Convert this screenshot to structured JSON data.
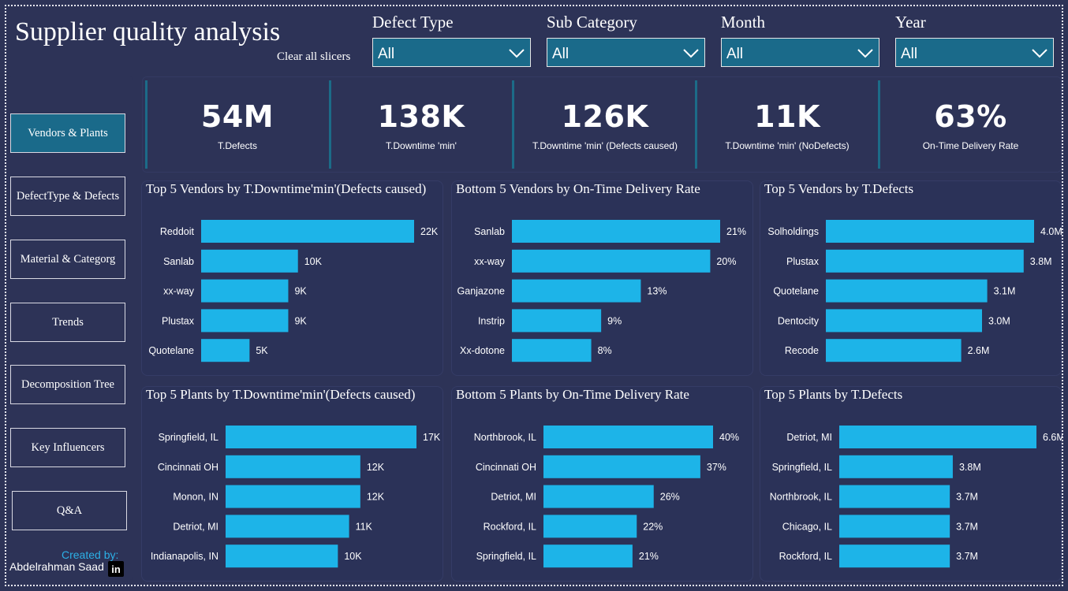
{
  "header": {
    "title": "Supplier quality analysis",
    "clear_label": "Clear all slicers"
  },
  "slicers": [
    {
      "label": "Defect Type",
      "value": "All"
    },
    {
      "label": "Sub Category",
      "value": "All"
    },
    {
      "label": "Month",
      "value": "All"
    },
    {
      "label": "Year",
      "value": "All"
    }
  ],
  "nav": {
    "items": [
      {
        "label": "Vendors & Plants",
        "active": true
      },
      {
        "label": "DefectType & Defects",
        "active": false
      },
      {
        "label": "Material & Categorg",
        "active": false
      },
      {
        "label": "Trends",
        "active": false
      },
      {
        "label": "Decomposition Tree",
        "active": false
      },
      {
        "label": "Key Influencers",
        "active": false
      },
      {
        "label": "Q&A",
        "active": false
      }
    ],
    "created_by": "Created by:",
    "author": "Abdelrahman Saad",
    "linkedin_icon": "linkedin-icon"
  },
  "kpis": [
    {
      "value": "54M",
      "label": "T.Defects"
    },
    {
      "value": "138K",
      "label": "T.Downtime 'min'"
    },
    {
      "value": "126K",
      "label": "T.Downtime 'min' (Defects caused)"
    },
    {
      "value": "11K",
      "label": "T.Downtime 'min' (NoDefects)"
    },
    {
      "value": "63%",
      "label": "On-Time Delivery Rate"
    }
  ],
  "colors": {
    "bar": "#1db4e8",
    "accent": "#1a6a8a",
    "background": "#2d3357"
  },
  "chart_data": [
    {
      "type": "bar",
      "orientation": "horizontal",
      "title": "Top 5 Vendors by T.Downtime'min'(Defects caused)",
      "categories": [
        "Reddoit",
        "Sanlab",
        "xx-way",
        "Plustax",
        "Quotelane"
      ],
      "values": [
        22,
        10,
        9,
        9,
        5
      ],
      "labels": [
        "22K",
        "10K",
        "9K",
        "9K",
        "5K"
      ],
      "max": 22
    },
    {
      "type": "bar",
      "orientation": "horizontal",
      "title": "Bottom 5 Vendors by On-Time Delivery Rate",
      "categories": [
        "Sanlab",
        "xx-way",
        "Ganjazone",
        "Instrip",
        "Xx-dotone"
      ],
      "values": [
        21,
        20,
        13,
        9,
        8
      ],
      "labels": [
        "21%",
        "20%",
        "13%",
        "9%",
        "8%"
      ],
      "max": 21
    },
    {
      "type": "bar",
      "orientation": "horizontal",
      "title": "Top 5 Vendors by T.Defects",
      "categories": [
        "Solholdings",
        "Plustax",
        "Quotelane",
        "Dentocity",
        "Recode"
      ],
      "values": [
        4.0,
        3.8,
        3.1,
        3.0,
        2.6
      ],
      "labels": [
        "4.0M",
        "3.8M",
        "3.1M",
        "3.0M",
        "2.6M"
      ],
      "max": 4.0
    },
    {
      "type": "bar",
      "orientation": "horizontal",
      "title": "Top 5 Plants by T.Downtime'min'(Defects caused)",
      "categories": [
        "Springfield, IL",
        "Cincinnati OH",
        "Monon, IN",
        "Detriot, MI",
        "Indianapolis, IN"
      ],
      "values": [
        17,
        12,
        12,
        11,
        10
      ],
      "labels": [
        "17K",
        "12K",
        "12K",
        "11K",
        "10K"
      ],
      "max": 17
    },
    {
      "type": "bar",
      "orientation": "horizontal",
      "title": "Bottom 5 Plants by On-Time Delivery Rate",
      "categories": [
        "Northbrook, IL",
        "Cincinnati OH",
        "Detriot, MI",
        "Rockford, IL",
        "Springfield, IL"
      ],
      "values": [
        40,
        37,
        26,
        22,
        21
      ],
      "labels": [
        "40%",
        "37%",
        "26%",
        "22%",
        "21%"
      ],
      "max": 40
    },
    {
      "type": "bar",
      "orientation": "horizontal",
      "title": "Top 5 Plants by T.Defects",
      "categories": [
        "Detriot, MI",
        "Springfield, IL",
        "Northbrook, IL",
        "Chicago, IL",
        "Rockford, IL"
      ],
      "values": [
        6.6,
        3.8,
        3.7,
        3.7,
        3.7
      ],
      "labels": [
        "6.6M",
        "3.8M",
        "3.7M",
        "3.7M",
        "3.7M"
      ],
      "max": 6.6
    }
  ]
}
